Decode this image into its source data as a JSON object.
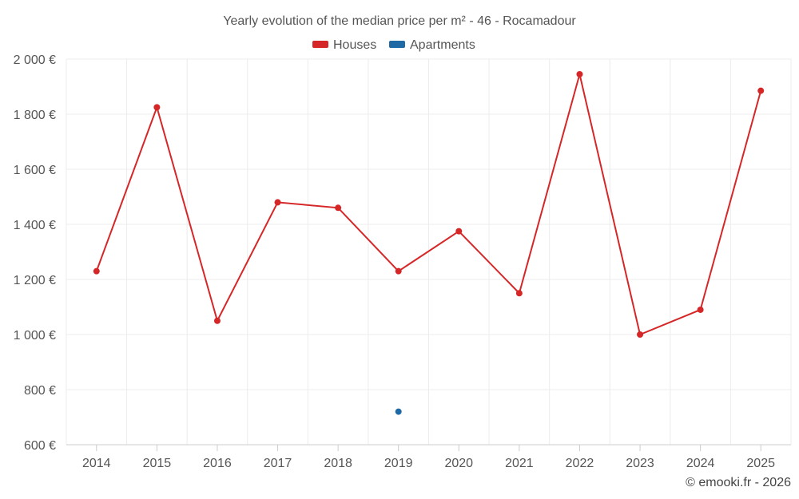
{
  "chart_data": {
    "type": "line",
    "title": "Yearly evolution of the median price per m² - 46 - Rocamadour",
    "categories": [
      "2014",
      "2015",
      "2016",
      "2017",
      "2018",
      "2019",
      "2020",
      "2021",
      "2022",
      "2023",
      "2024",
      "2025"
    ],
    "series": [
      {
        "name": "Houses",
        "color": "#d62728",
        "values": [
          1230,
          1825,
          1050,
          1480,
          1460,
          1230,
          1375,
          1150,
          1945,
          1000,
          1090,
          1885
        ]
      },
      {
        "name": "Apartments",
        "color": "#1f6aa5",
        "values": [
          null,
          null,
          null,
          null,
          null,
          720,
          null,
          null,
          null,
          null,
          null,
          null
        ]
      }
    ],
    "ylim": [
      600,
      2000
    ],
    "yticks": [
      600,
      800,
      1000,
      1200,
      1400,
      1600,
      1800,
      2000
    ],
    "ytick_labels": [
      "600 €",
      "800 €",
      "1 000 €",
      "1 200 €",
      "1 400 €",
      "1 600 €",
      "1 800 €",
      "2 000 €"
    ],
    "legend_position": "top-center",
    "grid": true
  },
  "credit": "© emooki.fr - 2026"
}
